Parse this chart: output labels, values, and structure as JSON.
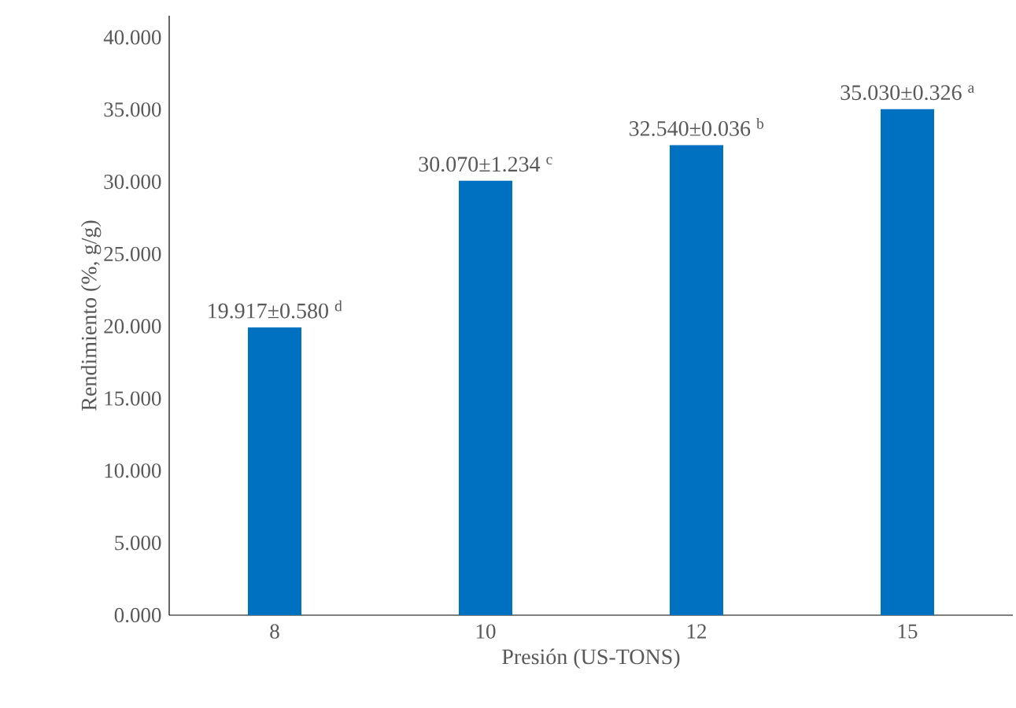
{
  "chart_data": {
    "type": "bar",
    "xlabel": "Presión (US-TONS)",
    "ylabel": "Rendimiento (%, g/g)",
    "categories": [
      "8",
      "10",
      "12",
      "15"
    ],
    "values": [
      19.917,
      30.07,
      32.54,
      35.03
    ],
    "value_labels": [
      "19.917±0.580 $^{d}$",
      "30.070±1.234 $^{c}$",
      "32.540±0.036 $^{b}$",
      "35.030±0.326 $^{a}$"
    ],
    "color": "#0070c0",
    "ylim": [
      0,
      41.5
    ],
    "yticks": [
      {
        "value": 0,
        "label": "0.000"
      },
      {
        "value": 5,
        "label": "5.000"
      },
      {
        "value": 10,
        "label": "10.000"
      },
      {
        "value": 15,
        "label": "15.000"
      },
      {
        "value": 20,
        "label": "20.000"
      },
      {
        "value": 25,
        "label": "25.000"
      },
      {
        "value": 30,
        "label": "30.000"
      },
      {
        "value": 35,
        "label": "35.000"
      },
      {
        "value": 40,
        "label": "40.000"
      }
    ]
  }
}
